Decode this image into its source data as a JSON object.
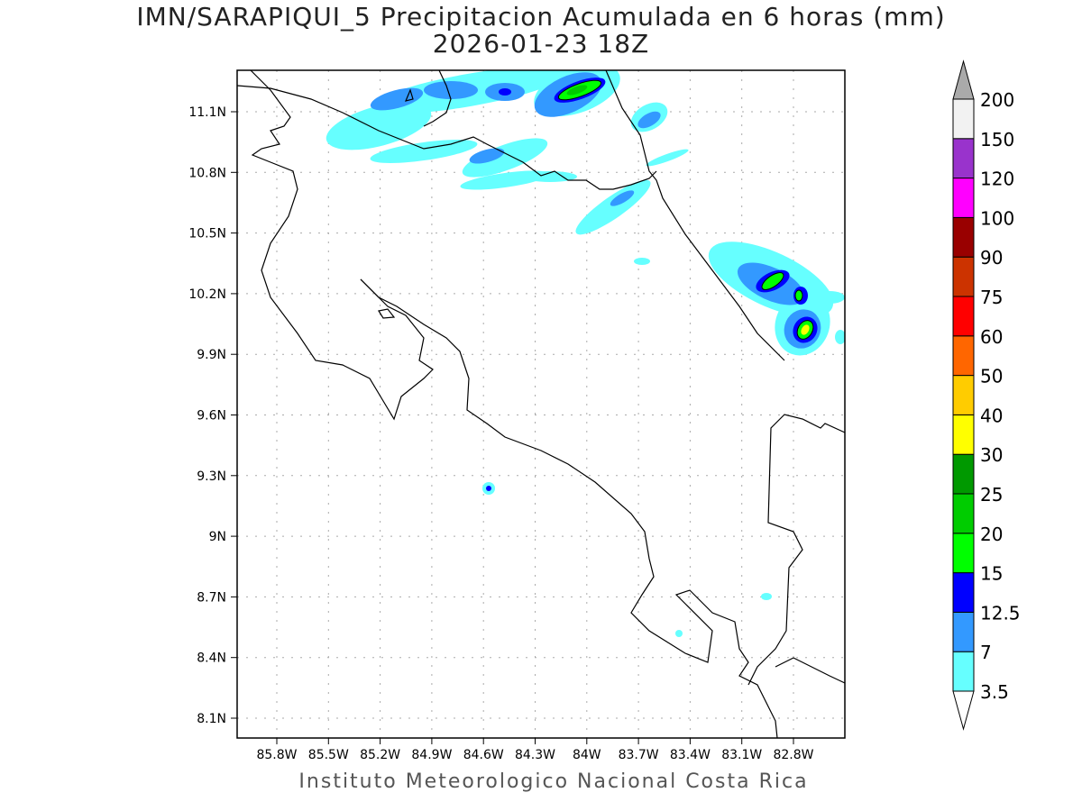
{
  "title": "IMN/SARAPIQUI_5 Precipitacion Acumulada en 6 horas (mm)",
  "subtitle": "2026-01-23 18Z",
  "credit": "Instituto Meteorologico Nacional Costa Rica",
  "lon_labels": [
    "85.8W",
    "85.5W",
    "85.2W",
    "84.9W",
    "84.6W",
    "84.3W",
    "84W",
    "83.7W",
    "83.4W",
    "83.1W",
    "82.8W"
  ],
  "lat_labels": [
    "11.1N",
    "10.8N",
    "10.5N",
    "10.2N",
    "9.9N",
    "9.6N",
    "9.3N",
    "9N",
    "8.7N",
    "8.4N",
    "8.1N"
  ],
  "colorbar": {
    "labels": [
      "3.5",
      "7",
      "12.5",
      "15",
      "20",
      "25",
      "30",
      "40",
      "50",
      "60",
      "75",
      "90",
      "100",
      "120",
      "150",
      "200"
    ],
    "colors": [
      "#66ffff",
      "#3399ff",
      "#0000ff",
      "#00ff00",
      "#00cc00",
      "#009900",
      "#ffff00",
      "#ffcc00",
      "#ff6600",
      "#ff0000",
      "#cc3300",
      "#990000",
      "#ff00ff",
      "#9933cc",
      "#f2f2f2"
    ],
    "over_color": "#aaaaaa",
    "under_color": "#ffffff"
  }
}
